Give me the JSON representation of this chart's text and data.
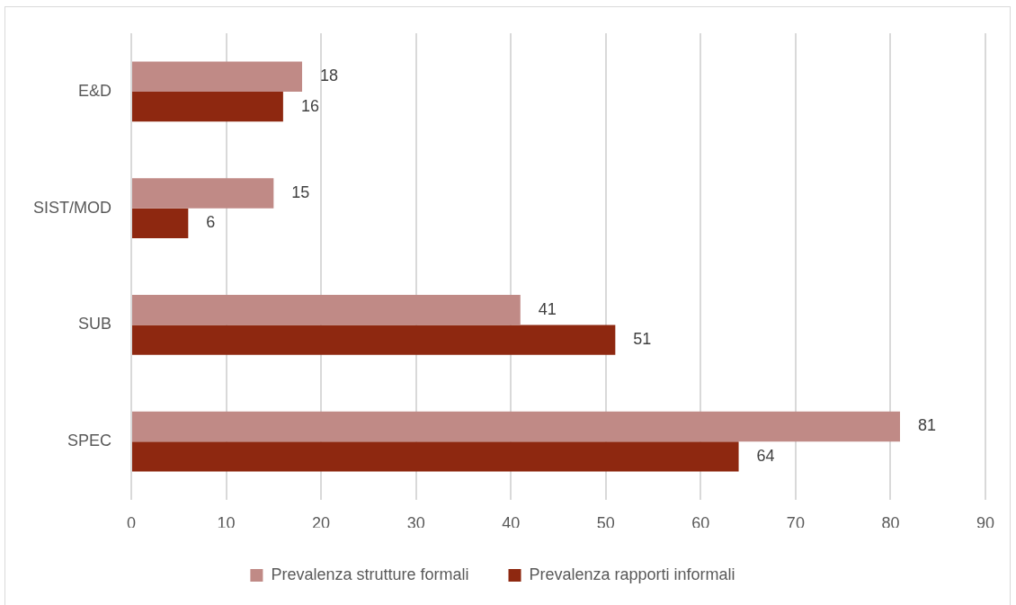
{
  "chart_data": {
    "type": "bar",
    "orientation": "horizontal",
    "categories": [
      "E&D",
      "SIST/MOD",
      "SUB",
      "SPEC"
    ],
    "series": [
      {
        "name": "Prevalenza strutture formali",
        "color": "#c08a86",
        "values": [
          18,
          15,
          41,
          81
        ]
      },
      {
        "name": "Prevalenza rapporti informali",
        "color": "#8e2810",
        "values": [
          16,
          6,
          51,
          64
        ]
      }
    ],
    "xlim": [
      0,
      90
    ],
    "xticks": [
      0,
      10,
      20,
      30,
      40,
      50,
      60,
      70,
      80,
      90
    ],
    "grid": "x",
    "legend": "bottom",
    "data_labels": true
  }
}
